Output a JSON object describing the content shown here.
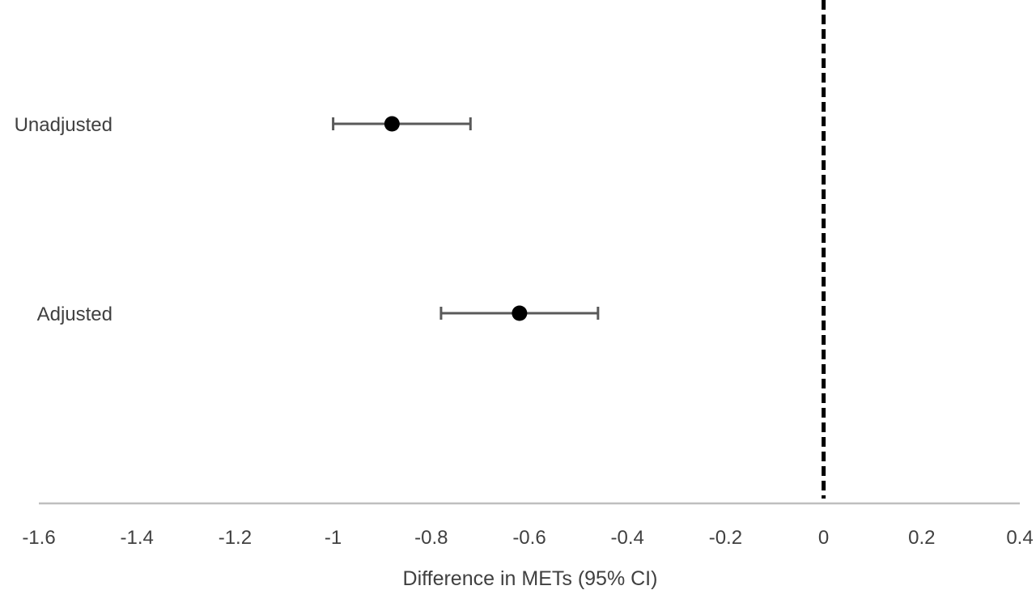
{
  "chart_data": {
    "type": "scatter",
    "title": "",
    "xlabel": "Difference in METs (95% CI)",
    "ylabel": "",
    "xlim": [
      -1.6,
      0.4
    ],
    "x_ticks": [
      "-1.6",
      "-1.4",
      "-1.2",
      "-1",
      "-0.8",
      "-0.6",
      "-0.4",
      "-0.2",
      "0",
      "0.2",
      "0.4"
    ],
    "x_tick_values": [
      -1.6,
      -1.4,
      -1.2,
      -1.0,
      -0.8,
      -0.6,
      -0.4,
      -0.2,
      0.0,
      0.2,
      0.4
    ],
    "reference_line": 0,
    "grid": false,
    "legend": "none",
    "categories": [
      "Unadjusted",
      "Adjusted"
    ],
    "points": [
      {
        "label": "Unadjusted",
        "estimate": -0.88,
        "ci_low": -1.0,
        "ci_high": -0.72
      },
      {
        "label": "Adjusted",
        "estimate": -0.62,
        "ci_low": -0.78,
        "ci_high": -0.46
      }
    ],
    "colors": {
      "point": "#000000",
      "error_bar": "#595959",
      "axis": "#bfbfbf",
      "reference_line": "#000000",
      "text": "#404040"
    }
  }
}
